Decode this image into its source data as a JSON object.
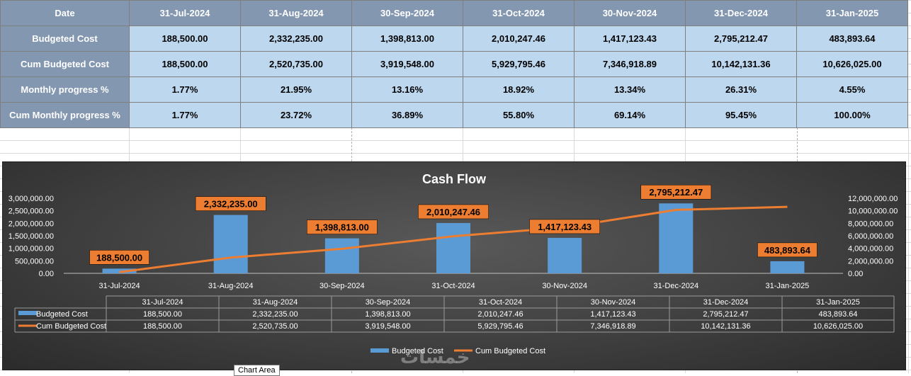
{
  "table": {
    "header_label": "Date",
    "dates": [
      "31-Jul-2024",
      "31-Aug-2024",
      "30-Sep-2024",
      "31-Oct-2024",
      "30-Nov-2024",
      "31-Dec-2024",
      "31-Jan-2025"
    ],
    "rows": [
      {
        "label": "Budgeted Cost",
        "values": [
          "188,500.00",
          "2,332,235.00",
          "1,398,813.00",
          "2,010,247.46",
          "1,417,123.43",
          "2,795,212.47",
          "483,893.64"
        ]
      },
      {
        "label": "Cum Budgeted Cost",
        "values": [
          "188,500.00",
          "2,520,735.00",
          "3,919,548.00",
          "5,929,795.46",
          "7,346,918.89",
          "10,142,131.36",
          "10,626,025.00"
        ]
      },
      {
        "label": "Monthly progress %",
        "values": [
          "1.77%",
          "21.95%",
          "13.16%",
          "18.92%",
          "13.34%",
          "26.31%",
          "4.55%"
        ]
      },
      {
        "label": "Cum Monthly progress %",
        "values": [
          "1.77%",
          "23.72%",
          "36.89%",
          "55.80%",
          "69.14%",
          "95.45%",
          "100.00%"
        ]
      }
    ]
  },
  "chart_data": {
    "type": "bar",
    "title": "Cash Flow",
    "categories": [
      "31-Jul-2024",
      "31-Aug-2024",
      "30-Sep-2024",
      "31-Oct-2024",
      "30-Nov-2024",
      "31-Dec-2024",
      "31-Jan-2025"
    ],
    "series": [
      {
        "name": "Budgeted Cost",
        "type": "bar",
        "axis": "primary",
        "values": [
          188500.0,
          2332235.0,
          1398813.0,
          2010247.46,
          1417123.43,
          2795212.47,
          483893.64
        ],
        "labels": [
          "188,500.00",
          "2,332,235.00",
          "1,398,813.00",
          "2,010,247.46",
          "1,417,123.43",
          "2,795,212.47",
          "483,893.64"
        ]
      },
      {
        "name": "Cum Budgeted Cost",
        "type": "line",
        "axis": "secondary",
        "values": [
          188500.0,
          2520735.0,
          3919548.0,
          5929795.46,
          7346918.89,
          10142131.36,
          10626025.0
        ],
        "labels": [
          "188,500.00",
          "2,520,735.00",
          "3,919,548.00",
          "5,929,795.46",
          "7,346,918.89",
          "10,142,131.36",
          "10,626,025.00"
        ]
      }
    ],
    "ylim": [
      0,
      3000000
    ],
    "y2lim": [
      0,
      12000000
    ],
    "yticks": [
      "0.00",
      "500,000.00",
      "1,000,000.00",
      "1,500,000.00",
      "2,000,000.00",
      "2,500,000.00",
      "3,000,000.00"
    ],
    "y2ticks": [
      "0.00",
      "2,000,000.00",
      "4,000,000.00",
      "6,000,000.00",
      "8,000,000.00",
      "10,000,000.00",
      "12,000,000.00"
    ],
    "legend": [
      "Budgeted Cost",
      "Cum Budgeted Cost"
    ],
    "legend_position": "bottom",
    "colors": {
      "bar": "#5b9bd5",
      "line": "#ed7d31",
      "label_bg": "#ed7d31"
    }
  },
  "tooltip": "Chart Area",
  "watermark": "خمسات"
}
